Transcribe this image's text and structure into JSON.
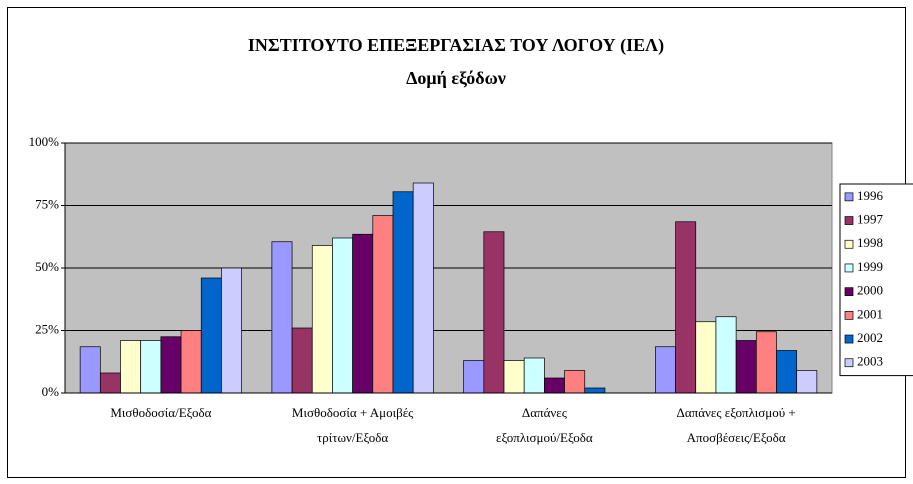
{
  "chart_data": {
    "type": "bar",
    "title": "ΙΝΣΤΙΤΟΥΤΟ ΕΠΕΞΕΡΓΑΣΙΑΣ ΤΟΥ ΛΟΓΟΥ (ΙΕΛ)",
    "subtitle": "Δομή εξόδων",
    "categories": [
      [
        "Μισθοδοσία/Εξοδα"
      ],
      [
        "Μισθοδοσία + Αμοιβές",
        "τρίτων/Εξοδα"
      ],
      [
        "Δαπάνες",
        "εξοπλισμού/Εξοδα"
      ],
      [
        "Δαπάνες εξοπλισμού +",
        "Αποσβέσεις/Εξοδα"
      ]
    ],
    "series": [
      {
        "name": "1996",
        "color": "#9999ff",
        "values": [
          18.5,
          60.5,
          13,
          18.5
        ]
      },
      {
        "name": "1997",
        "color": "#993366",
        "values": [
          8,
          26,
          64.5,
          68.5
        ]
      },
      {
        "name": "1998",
        "color": "#ffffcc",
        "values": [
          21,
          59,
          13,
          28.5
        ]
      },
      {
        "name": "1999",
        "color": "#ccffff",
        "values": [
          21,
          62,
          14,
          30.5
        ]
      },
      {
        "name": "2000",
        "color": "#660066",
        "values": [
          22.5,
          63.5,
          6,
          21
        ]
      },
      {
        "name": "2001",
        "color": "#ff8080",
        "values": [
          25,
          71,
          9,
          24.5
        ]
      },
      {
        "name": "2002",
        "color": "#0066cc",
        "values": [
          46,
          80.5,
          2,
          17
        ]
      },
      {
        "name": "2003",
        "color": "#ccccff",
        "values": [
          50,
          84,
          0,
          9
        ]
      }
    ],
    "ylim": [
      0,
      100
    ],
    "yticks": [
      {
        "value": 0,
        "label": "0%"
      },
      {
        "value": 25,
        "label": "25%"
      },
      {
        "value": 50,
        "label": "50%"
      },
      {
        "value": 75,
        "label": "75%"
      },
      {
        "value": 100,
        "label": "100%"
      }
    ],
    "grid": true,
    "legend": "right",
    "plot_background": "#c0c0c0"
  }
}
